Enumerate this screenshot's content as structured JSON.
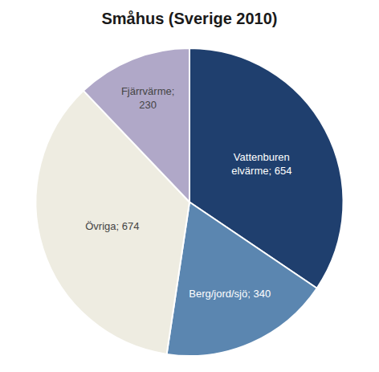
{
  "chart_data": {
    "type": "pie",
    "title": "Småhus (Sverige 2010)",
    "categories": [
      "Vattenburen\nelvärme; 654",
      "Berg/jord/sjö; 340",
      "Övriga; 674",
      "Fjärrvärme;\n230"
    ],
    "values": [
      654,
      340,
      674,
      230
    ],
    "colors": [
      "#1f3f6e",
      "#5b86b0",
      "#eeece1",
      "#b0a8c8"
    ]
  }
}
